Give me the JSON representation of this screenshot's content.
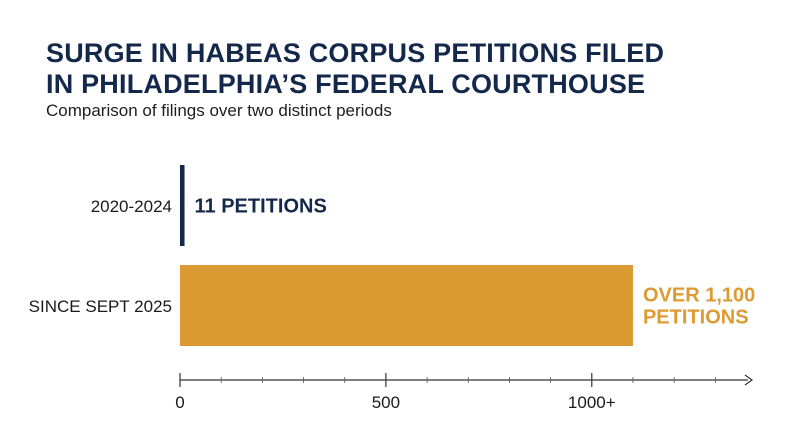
{
  "header": {
    "title_line1": "SURGE IN HABEAS CORPUS PETITIONS FILED",
    "title_line2": "IN PHILADELPHIA’S FEDERAL COURTHOUSE",
    "subtitle": "Comparison of filings over two distinct periods"
  },
  "chart_data": {
    "type": "bar",
    "orientation": "horizontal",
    "title": "SURGE IN HABEAS CORPUS PETITIONS FILED IN PHILADELPHIA’S FEDERAL COURTHOUSE",
    "subtitle": "Comparison of filings over two distinct periods",
    "categories": [
      "2020-2024",
      "SINCE SEPT 2025"
    ],
    "values": [
      11,
      1100
    ],
    "data_labels": [
      [
        "11 PETITIONS"
      ],
      [
        "OVER 1,100",
        "PETITIONS"
      ]
    ],
    "colors": [
      "#14284b",
      "#dc9b32"
    ],
    "xlim": [
      0,
      1400
    ],
    "x_ticks": [
      {
        "value": 0,
        "label": "0"
      },
      {
        "value": 500,
        "label": "500"
      },
      {
        "value": 1000,
        "label": "1000+"
      }
    ],
    "grid": false,
    "legend": "none"
  }
}
